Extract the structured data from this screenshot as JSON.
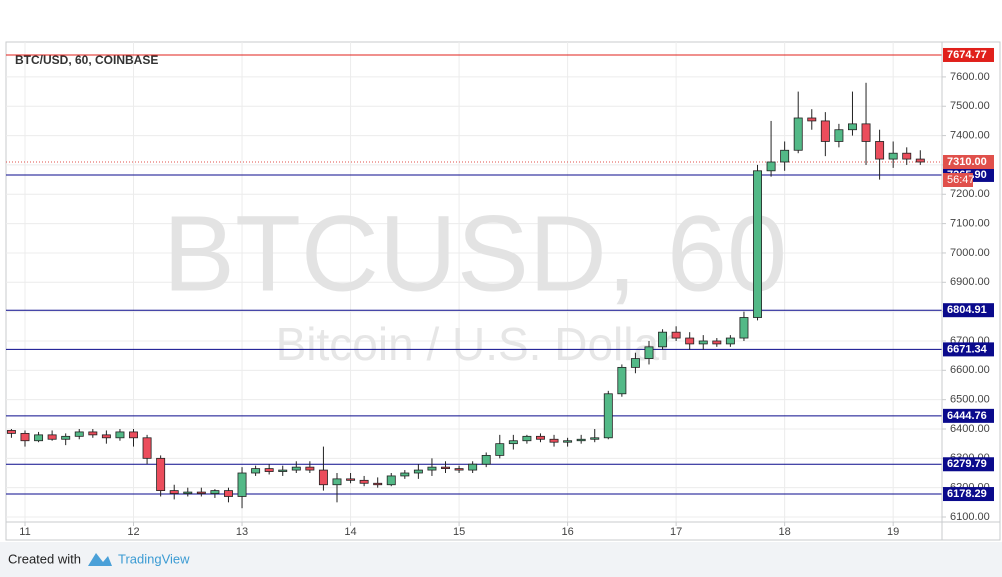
{
  "chart_data": {
    "type": "candlestick",
    "title": "BTC/USD, 60, COINBASE",
    "watermark": "BTCUSD, 60",
    "watermark_subtitle": "Bitcoin / U.S. Dollar",
    "up_color": "#53b987",
    "down_color": "#eb4d5c",
    "x": [
      10.875,
      11,
      11.125,
      11.25,
      11.375,
      11.5,
      11.625,
      11.75,
      11.875,
      12,
      12.125,
      12.25,
      12.375,
      12.5,
      12.625,
      12.75,
      12.875,
      13,
      13.125,
      13.25,
      13.375,
      13.5,
      13.625,
      13.75,
      13.875,
      14,
      14.125,
      14.25,
      14.375,
      14.5,
      14.625,
      14.75,
      14.875,
      15,
      15.125,
      15.25,
      15.375,
      15.5,
      15.625,
      15.75,
      15.875,
      16,
      16.125,
      16.25,
      16.375,
      16.5,
      16.625,
      16.75,
      16.875,
      17,
      17.125,
      17.25,
      17.375,
      17.5,
      17.625,
      17.75,
      17.875,
      18,
      18.125,
      18.25,
      18.375,
      18.5,
      18.625,
      18.75,
      18.875,
      19,
      19.125,
      19.25
    ],
    "open": [
      6395,
      6385,
      6360,
      6380,
      6365,
      6375,
      6390,
      6380,
      6370,
      6390,
      6370,
      6300,
      6190,
      6180,
      6185,
      6180,
      6190,
      6170,
      6250,
      6265,
      6255,
      6260,
      6270,
      6260,
      6210,
      6230,
      6225,
      6215,
      6210,
      6240,
      6250,
      6260,
      6270,
      6265,
      6260,
      6280,
      6310,
      6350,
      6360,
      6375,
      6365,
      6355,
      6360,
      6365,
      6370,
      6520,
      6610,
      6640,
      6680,
      6730,
      6710,
      6690,
      6700,
      6690,
      6710,
      6780,
      7280,
      7310,
      7350,
      7460,
      7450,
      7380,
      7420,
      7440,
      7380,
      7320,
      7340,
      7320
    ],
    "high": [
      6400,
      6395,
      6390,
      6395,
      6385,
      6400,
      6400,
      6395,
      6400,
      6400,
      6380,
      6310,
      6210,
      6200,
      6200,
      6195,
      6200,
      6270,
      6275,
      6280,
      6275,
      6290,
      6290,
      6340,
      6250,
      6250,
      6240,
      6235,
      6250,
      6260,
      6280,
      6300,
      6290,
      6275,
      6290,
      6320,
      6380,
      6380,
      6380,
      6385,
      6380,
      6370,
      6380,
      6400,
      6530,
      6620,
      6660,
      6700,
      6740,
      6750,
      6730,
      6720,
      6710,
      6720,
      6800,
      7300,
      7450,
      7380,
      7550,
      7490,
      7480,
      7440,
      7550,
      7580,
      7420,
      7380,
      7360,
      7350
    ],
    "low": [
      6370,
      6340,
      6355,
      6360,
      6345,
      6365,
      6370,
      6350,
      6360,
      6340,
      6280,
      6170,
      6160,
      6170,
      6170,
      6165,
      6150,
      6130,
      6240,
      6245,
      6240,
      6250,
      6250,
      6190,
      6150,
      6215,
      6205,
      6200,
      6205,
      6230,
      6230,
      6240,
      6250,
      6250,
      6250,
      6270,
      6300,
      6330,
      6350,
      6355,
      6340,
      6340,
      6350,
      6355,
      6365,
      6510,
      6590,
      6620,
      6670,
      6700,
      6670,
      6670,
      6680,
      6680,
      6700,
      6770,
      7260,
      7280,
      7340,
      7420,
      7330,
      7360,
      7400,
      7300,
      7250,
      7290,
      7300,
      7300
    ],
    "close": [
      6385,
      6360,
      6380,
      6365,
      6375,
      6390,
      6380,
      6370,
      6390,
      6370,
      6300,
      6190,
      6180,
      6185,
      6180,
      6190,
      6170,
      6250,
      6265,
      6255,
      6260,
      6270,
      6260,
      6210,
      6230,
      6225,
      6215,
      6210,
      6240,
      6250,
      6260,
      6270,
      6265,
      6260,
      6280,
      6310,
      6350,
      6360,
      6375,
      6365,
      6355,
      6360,
      6365,
      6370,
      6520,
      6610,
      6640,
      6680,
      6730,
      6710,
      6690,
      6700,
      6690,
      6710,
      6780,
      7280,
      7310,
      7350,
      7460,
      7450,
      7380,
      7420,
      7440,
      7380,
      7320,
      7340,
      7320,
      7310
    ],
    "xlim": [
      10.825,
      19.45
    ],
    "xticks": [
      11,
      12,
      13,
      14,
      15,
      16,
      17,
      18,
      19
    ],
    "ylim": [
      6083,
      7719
    ],
    "yticks": [
      {
        "value": 6100,
        "label": "6100.00"
      },
      {
        "value": 6200,
        "label": "6200.00"
      },
      {
        "value": 6300,
        "label": "6300.00"
      },
      {
        "value": 6400,
        "label": "6400.00"
      },
      {
        "value": 6500,
        "label": "6500.00"
      },
      {
        "value": 6600,
        "label": "6600.00"
      },
      {
        "value": 6700,
        "label": "6700.00"
      },
      {
        "value": 6800,
        "label": "6800.00"
      },
      {
        "value": 6900,
        "label": "6900.00"
      },
      {
        "value": 7000,
        "label": "7000.00"
      },
      {
        "value": 7100,
        "label": "7100.00"
      },
      {
        "value": 7200,
        "label": "7200.00"
      },
      {
        "value": 7300,
        "label": "7300.00"
      },
      {
        "value": 7400,
        "label": "7400.00"
      },
      {
        "value": 7500,
        "label": "7500.00"
      },
      {
        "value": 7600,
        "label": "7600.00"
      }
    ],
    "grid": true,
    "levels": [
      {
        "value": 7674.77,
        "label": "7674.77",
        "color": "#e0201b"
      },
      {
        "value": 7265.9,
        "label": "7265.90",
        "color": "#0a0a8c"
      },
      {
        "value": 6804.91,
        "label": "6804.91",
        "color": "#0a0a8c"
      },
      {
        "value": 6671.34,
        "label": "6671.34",
        "color": "#0a0a8c"
      },
      {
        "value": 6444.76,
        "label": "6444.76",
        "color": "#0a0a8c"
      },
      {
        "value": 6279.79,
        "label": "6279.79",
        "color": "#0a0a8c"
      },
      {
        "value": 6178.29,
        "label": "6178.29",
        "color": "#0a0a8c"
      }
    ],
    "last_price": {
      "value": 7310,
      "label": "7310.00",
      "color": "#e0504b",
      "countdown": "56:47"
    },
    "footer": {
      "created_with": "Created with",
      "brand": "TradingView"
    }
  }
}
